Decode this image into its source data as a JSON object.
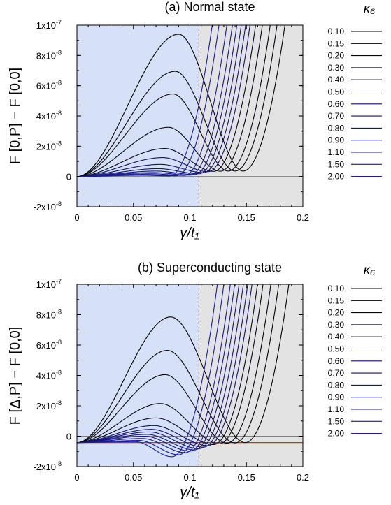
{
  "colors": {
    "normal_region": "#d6e0f6",
    "gap_region": "#e3e3e3",
    "grid_line": "#7f7f7f",
    "reference_line": "#cc3300",
    "series_black": "#000000",
    "series_blue": "#1a1aa6"
  },
  "chart_data": [
    {
      "type": "line",
      "title": "(a) Normal state",
      "ylabel": "F [0,P] − F [0,0]",
      "xlabel": "γ/t₁",
      "xlim": [
        0,
        0.2
      ],
      "ylim": [
        -2e-08,
        1e-07
      ],
      "x_ticks": [
        "0",
        "0.05",
        "0.1",
        "0.15",
        "0.2"
      ],
      "y_ticks": [
        {
          "base": "-2x10",
          "exp": "-8"
        },
        {
          "base": "0",
          "exp": ""
        },
        {
          "base": "2x10",
          "exp": "-8"
        },
        {
          "base": "4x10",
          "exp": "-8"
        },
        {
          "base": "6x10",
          "exp": "-8"
        },
        {
          "base": "8x10",
          "exp": "-8"
        },
        {
          "base": "1x10",
          "exp": "-7"
        }
      ],
      "region_boundary_x": 0.108,
      "legend_title": "κ₆",
      "legend_placement": "right",
      "series": [
        {
          "name": "0.10",
          "peak_x": 0.09,
          "peak_y": 9.4e-08,
          "min_x": 0.147,
          "min_y": 3.6e-09
        },
        {
          "name": "0.15",
          "peak_x": 0.087,
          "peak_y": 6.95e-08,
          "min_x": 0.14,
          "min_y": 3.6e-09
        },
        {
          "name": "0.20",
          "peak_x": 0.085,
          "peak_y": 5.45e-08,
          "min_x": 0.134,
          "min_y": 3.6e-09
        },
        {
          "name": "0.30",
          "peak_x": 0.081,
          "peak_y": 3.25e-08,
          "min_x": 0.127,
          "min_y": 3.5e-09
        },
        {
          "name": "0.40",
          "peak_x": 0.078,
          "peak_y": 1.85e-08,
          "min_x": 0.121,
          "min_y": 3.4e-09
        },
        {
          "name": "0.50",
          "peak_x": 0.076,
          "peak_y": 1.25e-08,
          "min_x": 0.116,
          "min_y": 3.2e-09
        },
        {
          "name": "0.60",
          "peak_x": 0.074,
          "peak_y": 8e-09,
          "min_x": 0.112,
          "min_y": 2.6e-09
        },
        {
          "name": "0.70",
          "peak_x": 0.072,
          "peak_y": 5.2e-09,
          "min_x": 0.108,
          "min_y": 1.8e-09
        },
        {
          "name": "0.80",
          "peak_x": 0.07,
          "peak_y": 3.6e-09,
          "min_x": 0.104,
          "min_y": 1.3e-09
        },
        {
          "name": "0.90",
          "peak_x": 0.068,
          "peak_y": 2.6e-09,
          "min_x": 0.1,
          "min_y": 9e-10
        },
        {
          "name": "1.10",
          "peak_x": 0.066,
          "peak_y": 1.8e-09,
          "min_x": 0.095,
          "min_y": 7e-10
        },
        {
          "name": "1.50",
          "peak_x": 0.062,
          "peak_y": 1.2e-09,
          "min_x": 0.088,
          "min_y": 5e-10
        },
        {
          "name": "2.00",
          "peak_x": 0.058,
          "peak_y": 8e-10,
          "min_x": 0.082,
          "min_y": 4e-10
        }
      ]
    },
    {
      "type": "line",
      "title": "(b) Superconducting state",
      "ylabel": "F [Δ,P] − F [0,0]",
      "xlabel": "γ/t₁",
      "xlim": [
        0,
        0.2
      ],
      "ylim": [
        -2e-08,
        1e-07
      ],
      "x_ticks": [
        "0",
        "0.05",
        "0.1",
        "0.15",
        "0.2"
      ],
      "y_ticks": [
        {
          "base": "-2x10",
          "exp": "-8"
        },
        {
          "base": "0",
          "exp": ""
        },
        {
          "base": "2x10",
          "exp": "-8"
        },
        {
          "base": "4x10",
          "exp": "-8"
        },
        {
          "base": "6x10",
          "exp": "-8"
        },
        {
          "base": "8x10",
          "exp": "-8"
        },
        {
          "base": "1x10",
          "exp": "-7"
        }
      ],
      "region_boundary_x": 0.108,
      "reference_y": -4.2e-09,
      "legend_title": "κ₆",
      "legend_placement": "right",
      "series": [
        {
          "name": "0.10",
          "peak_x": 0.083,
          "peak_y": 7.85e-08,
          "min_x": 0.149,
          "min_y": -4.2e-09
        },
        {
          "name": "0.15",
          "peak_x": 0.08,
          "peak_y": 5.65e-08,
          "min_x": 0.14,
          "min_y": -4.4e-09
        },
        {
          "name": "0.20",
          "peak_x": 0.078,
          "peak_y": 4.05e-08,
          "min_x": 0.133,
          "min_y": -4.6e-09
        },
        {
          "name": "0.30",
          "peak_x": 0.074,
          "peak_y": 2.15e-08,
          "min_x": 0.126,
          "min_y": -5e-09
        },
        {
          "name": "0.40",
          "peak_x": 0.07,
          "peak_y": 1.2e-08,
          "min_x": 0.121,
          "min_y": -5.5e-09
        },
        {
          "name": "0.50",
          "peak_x": 0.068,
          "peak_y": 7e-09,
          "min_x": 0.116,
          "min_y": -6.2e-09
        },
        {
          "name": "0.60",
          "peak_x": 0.066,
          "peak_y": 4.5e-09,
          "min_x": 0.112,
          "min_y": -7.2e-09
        },
        {
          "name": "0.70",
          "peak_x": 0.064,
          "peak_y": 2.8e-09,
          "min_x": 0.108,
          "min_y": -8.2e-09
        },
        {
          "name": "0.80",
          "peak_x": 0.062,
          "peak_y": 1.2e-09,
          "min_x": 0.104,
          "min_y": -9e-09
        },
        {
          "name": "0.90",
          "peak_x": 0.06,
          "peak_y": 0.0,
          "min_x": 0.1,
          "min_y": -9.8e-09
        },
        {
          "name": "1.10",
          "peak_x": 0.058,
          "peak_y": -1.5e-09,
          "min_x": 0.096,
          "min_y": -1.08e-08
        },
        {
          "name": "1.50",
          "peak_x": 0.055,
          "peak_y": -2.8e-09,
          "min_x": 0.09,
          "min_y": -1.22e-08
        },
        {
          "name": "2.00",
          "peak_x": 0.052,
          "peak_y": -3.6e-09,
          "min_x": 0.084,
          "min_y": -1.35e-08
        }
      ]
    }
  ]
}
